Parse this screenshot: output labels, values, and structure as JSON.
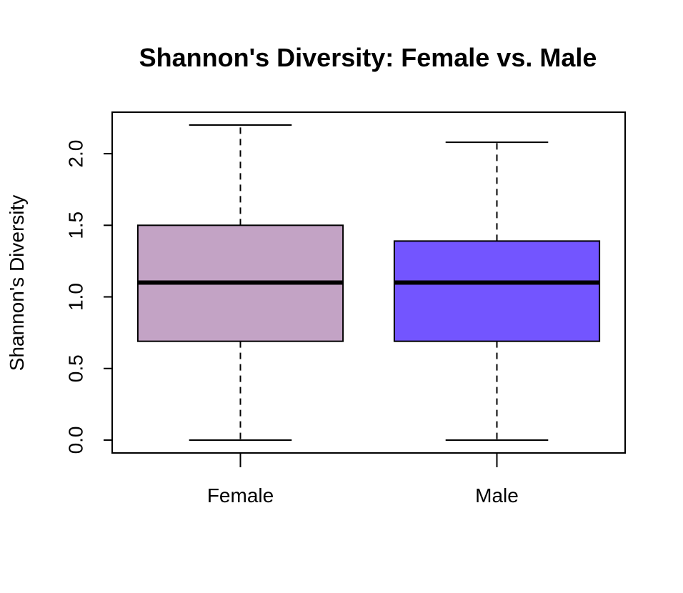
{
  "chart_data": {
    "type": "box",
    "title": "Shannon's Diversity: Female vs. Male",
    "xlabel": "",
    "ylabel": "Shannon's Diversity",
    "ylim": [
      -0.09,
      2.29
    ],
    "yticks": [
      0.0,
      0.5,
      1.0,
      1.5,
      2.0
    ],
    "ytick_labels": [
      "0.0",
      "0.5",
      "1.0",
      "1.5",
      "2.0"
    ],
    "grid": false,
    "categories": [
      "Female",
      "Male"
    ],
    "boxes": [
      {
        "name": "Female",
        "min": 0.0,
        "q1": 0.69,
        "median": 1.1,
        "q3": 1.5,
        "max": 2.2,
        "color": "#C3A3C5"
      },
      {
        "name": "Male",
        "min": 0.0,
        "q1": 0.69,
        "median": 1.1,
        "q3": 1.39,
        "max": 2.08,
        "color": "#7355FF"
      }
    ]
  }
}
